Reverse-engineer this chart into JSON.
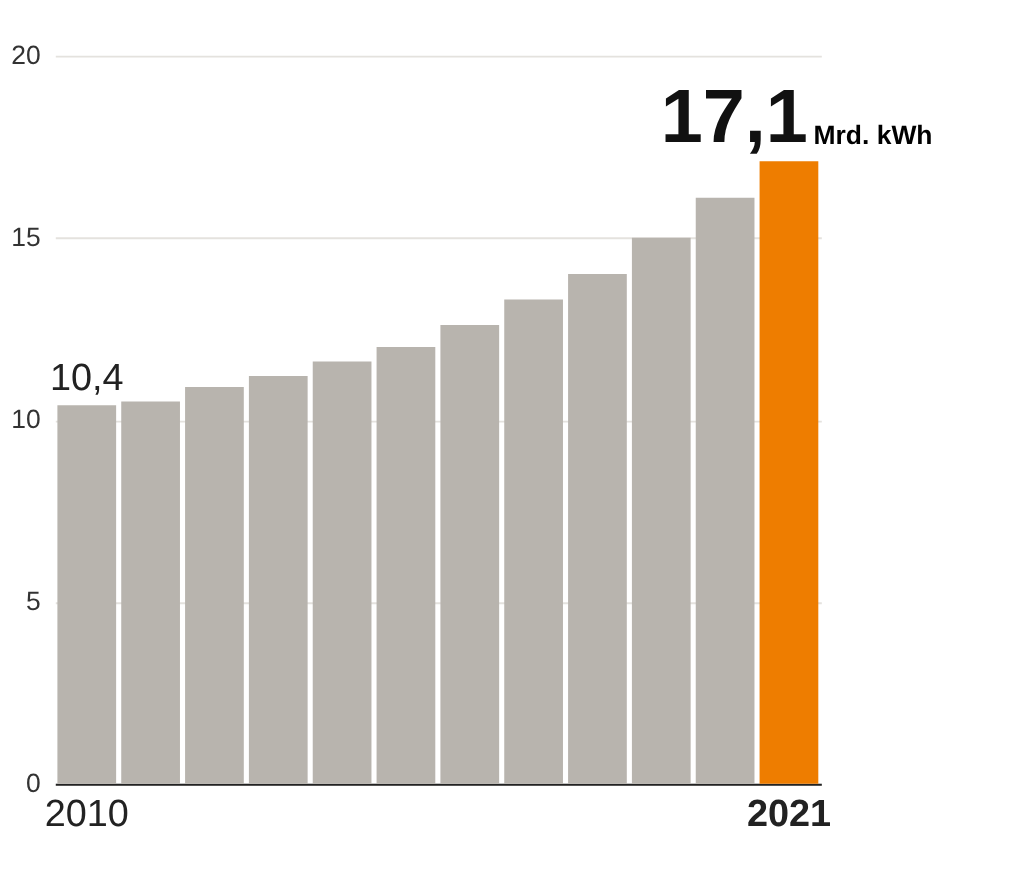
{
  "chart_data": {
    "type": "bar",
    "categories": [
      "2010",
      null,
      null,
      null,
      null,
      null,
      null,
      null,
      null,
      null,
      null,
      "2021"
    ],
    "values": [
      10.4,
      10.5,
      10.9,
      11.2,
      11.6,
      12.0,
      12.6,
      13.3,
      14.0,
      15.0,
      16.1,
      17.1
    ],
    "colors": [
      "#b8b4ae",
      "#b8b4ae",
      "#b8b4ae",
      "#b8b4ae",
      "#b8b4ae",
      "#b8b4ae",
      "#b8b4ae",
      "#b8b4ae",
      "#b8b4ae",
      "#b8b4ae",
      "#b8b4ae",
      "#ee7d00"
    ],
    "value_labels": [
      "10,4",
      null,
      null,
      null,
      null,
      null,
      null,
      null,
      null,
      null,
      null,
      "17,1"
    ],
    "annotations": [
      {
        "text": "Mrd. kWh",
        "x": "2021",
        "y": 17.1
      }
    ],
    "ylim": [
      0,
      20
    ],
    "yticks": [
      0,
      5,
      10,
      15,
      20
    ],
    "grid": "y"
  }
}
